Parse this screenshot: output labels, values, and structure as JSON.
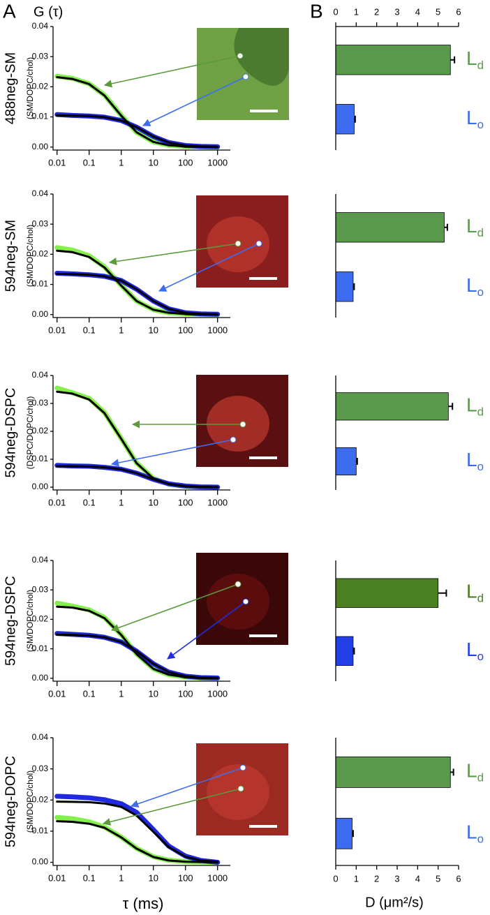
{
  "panel_labels": [
    "A",
    "B"
  ],
  "chart_data": [
    {
      "type": "line",
      "title": "488neg-SM",
      "subtitle": "(SM/DOPC/chol)",
      "ylabel": "G (τ)",
      "xlog": true,
      "x": [
        0.01,
        0.03,
        0.1,
        0.3,
        1,
        3,
        10,
        30,
        100,
        300,
        1000
      ],
      "xlim": [
        0.0075,
        2500
      ],
      "ylim": [
        -0.001,
        0.04
      ],
      "xticks": [
        0.01,
        0.1,
        1,
        10,
        100,
        1000
      ],
      "yticks": [
        {
          "value": 0,
          "label": "0.00"
        },
        {
          "value": 0.01,
          "label": "0.01"
        },
        {
          "value": 0.02,
          "label": "0.02"
        },
        {
          "value": 0.03,
          "label": "0.03"
        },
        {
          "value": 0.04,
          "label": "0.04"
        }
      ],
      "series": [
        {
          "color": "#84f04c",
          "values": [
            0.0235,
            0.0228,
            0.021,
            0.0172,
            0.0105,
            0.0049,
            0.0017,
            0.0006,
            0.0002,
            0.0001,
            0
          ]
        },
        {
          "color": "#2028e0",
          "values": [
            0.0108,
            0.0105,
            0.0103,
            0.0099,
            0.0088,
            0.0066,
            0.0035,
            0.0015,
            0.0005,
            0.0002,
            0.0001
          ]
        },
        {
          "color": "#000000",
          "values": [
            0.0232,
            0.0226,
            0.0209,
            0.0171,
            0.0104,
            0.0049,
            0.0017,
            0.0006,
            0.0002,
            0.0001,
            0
          ]
        },
        {
          "color": "#000000",
          "values": [
            0.0105,
            0.0104,
            0.0103,
            0.0099,
            0.0088,
            0.0066,
            0.0035,
            0.0015,
            0.0005,
            0.0002,
            0.0001
          ]
        }
      ]
    },
    {
      "type": "line",
      "title": "594neg-SM",
      "subtitle": "(SM/DOPC/chol)",
      "xlog": true,
      "x": [
        0.01,
        0.03,
        0.1,
        0.3,
        1,
        3,
        10,
        30,
        100,
        300,
        1000
      ],
      "xlim": [
        0.0075,
        2500
      ],
      "ylim": [
        -0.001,
        0.04
      ],
      "xticks": [
        0.01,
        0.1,
        1,
        10,
        100,
        1000
      ],
      "yticks": [
        {
          "value": 0,
          "label": "0.00"
        },
        {
          "value": 0.01,
          "label": "0.01"
        },
        {
          "value": 0.02,
          "label": "0.02"
        },
        {
          "value": 0.03,
          "label": "0.03"
        },
        {
          "value": 0.04,
          "label": "0.04"
        }
      ],
      "series": [
        {
          "color": "#84f04c",
          "values": [
            0.0222,
            0.0214,
            0.0195,
            0.0158,
            0.0097,
            0.0045,
            0.0016,
            0.0006,
            0.0002,
            0.0001,
            0
          ]
        },
        {
          "color": "#2028e0",
          "values": [
            0.0137,
            0.0135,
            0.0132,
            0.0127,
            0.0113,
            0.0084,
            0.0045,
            0.0019,
            0.0006,
            0.0002,
            0.0001
          ]
        },
        {
          "color": "#000000",
          "values": [
            0.0212,
            0.0207,
            0.0191,
            0.0156,
            0.0096,
            0.0045,
            0.0016,
            0.0006,
            0.0002,
            0.0001,
            0
          ]
        },
        {
          "color": "#000000",
          "values": [
            0.0135,
            0.0134,
            0.0132,
            0.0127,
            0.0113,
            0.0084,
            0.0045,
            0.0019,
            0.0006,
            0.0002,
            0.0001
          ]
        }
      ]
    },
    {
      "type": "line",
      "title": "594neg-DSPC",
      "subtitle": "(DSPC/DOPC/chol)",
      "xlog": true,
      "x": [
        0.01,
        0.03,
        0.1,
        0.3,
        1,
        3,
        10,
        30,
        100,
        300,
        1000
      ],
      "xlim": [
        0.0075,
        2500
      ],
      "ylim": [
        -0.001,
        0.04
      ],
      "xticks": [
        0.01,
        0.1,
        1,
        10,
        100,
        1000
      ],
      "yticks": [
        {
          "value": 0,
          "label": "0.00"
        },
        {
          "value": 0.01,
          "label": "0.01"
        },
        {
          "value": 0.02,
          "label": "0.02"
        },
        {
          "value": 0.03,
          "label": "0.03"
        },
        {
          "value": 0.04,
          "label": "0.04"
        }
      ],
      "series": [
        {
          "color": "#84f04c",
          "values": [
            0.0355,
            0.0338,
            0.0318,
            0.0267,
            0.0174,
            0.0087,
            0.0031,
            0.0011,
            0.0003,
            0.0001,
            0
          ]
        },
        {
          "color": "#2028e0",
          "values": [
            0.0078,
            0.0076,
            0.0075,
            0.0071,
            0.0064,
            0.005,
            0.0028,
            0.0012,
            0.0004,
            0.0001,
            0
          ]
        },
        {
          "color": "#000000",
          "values": [
            0.0342,
            0.0335,
            0.0314,
            0.0265,
            0.0173,
            0.0086,
            0.0031,
            0.0011,
            0.0003,
            0.0001,
            0
          ]
        },
        {
          "color": "#000000",
          "values": [
            0.0075,
            0.0075,
            0.0074,
            0.0071,
            0.0064,
            0.005,
            0.0028,
            0.0012,
            0.0004,
            0.0001,
            0
          ]
        }
      ]
    },
    {
      "type": "line",
      "title": "594neg-DSPC",
      "subtitle": "(SM/DOPC/chol)",
      "xlog": true,
      "x": [
        0.01,
        0.03,
        0.1,
        0.3,
        1,
        3,
        10,
        30,
        100,
        300,
        1000
      ],
      "xlim": [
        0.0075,
        2500
      ],
      "ylim": [
        -0.001,
        0.04
      ],
      "xticks": [
        0.01,
        0.1,
        1,
        10,
        100,
        1000
      ],
      "yticks": [
        {
          "value": 0,
          "label": "0.00"
        },
        {
          "value": 0.01,
          "label": "0.01"
        },
        {
          "value": 0.02,
          "label": "0.02"
        },
        {
          "value": 0.03,
          "label": "0.03"
        },
        {
          "value": 0.04,
          "label": "0.04"
        }
      ],
      "series": [
        {
          "color": "#84f04c",
          "values": [
            0.0255,
            0.0245,
            0.0232,
            0.0206,
            0.0148,
            0.0083,
            0.0032,
            0.0012,
            0.0004,
            0.0001,
            0
          ]
        },
        {
          "color": "#2028e0",
          "values": [
            0.0152,
            0.0149,
            0.0146,
            0.0139,
            0.0123,
            0.0092,
            0.0049,
            0.0021,
            0.0007,
            0.0002,
            0.0001
          ]
        },
        {
          "color": "#000000",
          "values": [
            0.0243,
            0.024,
            0.0229,
            0.0204,
            0.0147,
            0.0082,
            0.0032,
            0.0012,
            0.0004,
            0.0001,
            0
          ]
        },
        {
          "color": "#000000",
          "values": [
            0.0148,
            0.0147,
            0.0145,
            0.0139,
            0.0123,
            0.0092,
            0.0049,
            0.0021,
            0.0007,
            0.0002,
            0.0001
          ]
        }
      ]
    },
    {
      "type": "line",
      "title": "594neg-DOPC",
      "subtitle": "(SM/DOPC/chol)",
      "xlabel": "τ (ms)",
      "xlog": true,
      "x": [
        0.01,
        0.03,
        0.1,
        0.3,
        1,
        3,
        10,
        30,
        100,
        300,
        1000
      ],
      "xlim": [
        0.0075,
        2500
      ],
      "ylim": [
        -0.001,
        0.04
      ],
      "xticks": [
        0.01,
        0.1,
        1,
        10,
        100,
        1000
      ],
      "yticks": [
        {
          "value": 0,
          "label": "0.00"
        },
        {
          "value": 0.01,
          "label": "0.01"
        },
        {
          "value": 0.02,
          "label": "0.02"
        },
        {
          "value": 0.03,
          "label": "0.03"
        },
        {
          "value": 0.04,
          "label": "0.04"
        }
      ],
      "series": [
        {
          "color": "#84f04c",
          "values": [
            0.0144,
            0.014,
            0.013,
            0.0113,
            0.0081,
            0.0045,
            0.0018,
            0.0007,
            0.0002,
            0.0001,
            0
          ]
        },
        {
          "color": "#2028e0",
          "values": [
            0.0212,
            0.021,
            0.0207,
            0.0201,
            0.0188,
            0.016,
            0.0105,
            0.0052,
            0.002,
            0.0006,
            0
          ]
        },
        {
          "color": "#000000",
          "values": [
            0.0132,
            0.013,
            0.0124,
            0.0111,
            0.008,
            0.0044,
            0.0017,
            0.0006,
            0.0002,
            0.0001,
            0
          ]
        },
        {
          "color": "#000000",
          "values": [
            0.0195,
            0.0194,
            0.0193,
            0.0189,
            0.0178,
            0.015,
            0.0098,
            0.0049,
            0.0018,
            0.0006,
            0.0002
          ]
        }
      ]
    },
    {
      "type": "bar",
      "orientation": "horizontal",
      "categories": [
        "Ld",
        "Lo"
      ],
      "values": [
        5.6,
        0.9
      ],
      "errors": [
        0.2,
        0.05
      ],
      "colors": [
        "#5b9a4c",
        "#3d6cf0"
      ],
      "xlim": [
        0,
        6
      ],
      "xticks": [
        0,
        1,
        2,
        3,
        4,
        5,
        6
      ],
      "xaxis": "top"
    },
    {
      "type": "bar",
      "orientation": "horizontal",
      "categories": [
        "Ld",
        "Lo"
      ],
      "values": [
        5.3,
        0.85
      ],
      "errors": [
        0.15,
        0.05
      ],
      "colors": [
        "#5b9a4c",
        "#3d6cf0"
      ],
      "xlim": [
        0,
        6
      ]
    },
    {
      "type": "bar",
      "orientation": "horizontal",
      "categories": [
        "Ld",
        "Lo"
      ],
      "values": [
        5.5,
        1.0
      ],
      "errors": [
        0.2,
        0.05
      ],
      "colors": [
        "#5b9a4c",
        "#3d6cf0"
      ],
      "xlim": [
        0,
        6
      ]
    },
    {
      "type": "bar",
      "orientation": "horizontal",
      "categories": [
        "Ld",
        "Lo"
      ],
      "values": [
        5.0,
        0.85
      ],
      "errors": [
        0.4,
        0.05
      ],
      "colors": [
        "#4a7f22",
        "#2340e6"
      ],
      "xlim": [
        0,
        6
      ]
    },
    {
      "type": "bar",
      "orientation": "horizontal",
      "categories": [
        "Ld",
        "Lo"
      ],
      "values": [
        5.6,
        0.8
      ],
      "errors": [
        0.15,
        0.05
      ],
      "colors": [
        "#5b9a4c",
        "#3d6cf0"
      ],
      "xlim": [
        0,
        6
      ],
      "xticks": [
        0,
        1,
        2,
        3,
        4,
        5,
        6
      ],
      "xaxis": "bottom",
      "xlabel": "D (μm²/s)"
    }
  ]
}
